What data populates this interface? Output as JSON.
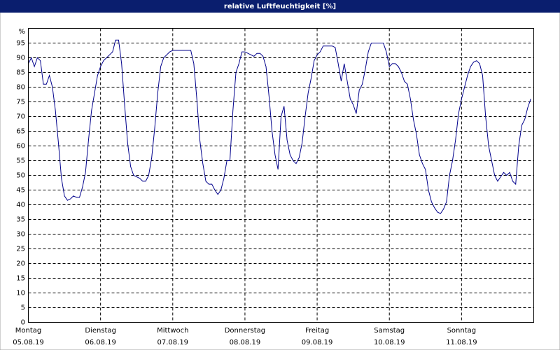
{
  "chart_data": {
    "type": "line",
    "title": "relative Luftfeuchtigkeit [%]",
    "y_label": "%",
    "x": [
      0,
      1,
      2,
      3,
      4,
      5,
      6,
      7,
      8,
      9,
      10,
      11,
      12,
      13,
      14,
      15,
      16,
      17,
      18,
      19,
      20,
      21,
      22,
      23,
      24,
      25,
      26,
      27,
      28,
      29,
      30,
      31,
      32,
      33,
      34,
      35,
      36,
      37,
      38,
      39,
      40,
      41,
      42,
      43,
      44,
      45,
      46,
      47,
      48,
      49,
      50,
      51,
      52,
      53,
      54,
      55,
      56,
      57,
      58,
      59,
      60,
      61,
      62,
      63,
      64,
      65,
      66,
      67,
      68,
      69,
      70,
      71,
      72,
      73,
      74,
      75,
      76,
      77,
      78,
      79,
      80,
      81,
      82,
      83,
      84,
      85,
      86,
      87,
      88,
      89,
      90,
      91,
      92,
      93,
      94,
      95,
      96,
      97,
      98,
      99,
      100,
      101,
      102,
      103,
      104,
      105,
      106,
      107,
      108,
      109,
      110,
      111,
      112,
      113,
      114,
      115,
      116,
      117,
      118,
      119,
      120,
      121,
      122,
      123,
      124,
      125,
      126,
      127,
      128,
      129,
      130,
      131,
      132,
      133,
      134,
      135,
      136,
      137,
      138,
      139,
      140,
      141,
      142,
      143,
      144,
      145,
      146,
      147,
      148,
      149,
      150,
      151,
      152,
      153,
      154,
      155,
      156,
      157,
      158,
      159,
      160,
      161,
      162,
      163,
      164,
      165,
      166,
      167
    ],
    "series": [
      {
        "name": "relative Luftfeuchtigkeit",
        "color": "#00008b",
        "values": [
          88,
          90,
          87,
          90,
          89,
          81,
          81,
          84,
          80,
          72,
          61,
          49,
          43,
          41.5,
          42,
          43,
          42.5,
          42.5,
          46,
          51,
          62,
          72,
          78,
          84,
          87,
          89,
          90,
          91,
          92,
          96,
          96,
          88,
          74,
          61,
          53,
          50,
          49.5,
          49,
          48,
          48,
          50,
          56,
          66,
          78,
          87,
          90,
          91,
          92,
          92.5,
          92.5,
          92.5,
          92.5,
          92.5,
          92.5,
          92.5,
          88,
          76,
          62,
          54,
          48,
          47,
          47,
          45,
          43.5,
          45,
          49,
          55,
          55,
          72,
          85,
          88,
          92,
          92,
          91.5,
          91,
          90.5,
          91.5,
          91.5,
          90.5,
          87,
          77,
          65,
          57,
          52,
          70,
          73.5,
          62,
          57,
          55,
          54,
          56,
          61,
          70,
          78,
          83,
          89,
          91,
          92,
          94,
          94,
          94,
          94,
          93.5,
          88,
          82,
          88,
          82,
          76,
          74,
          71,
          79,
          81,
          86,
          92,
          95,
          95,
          95,
          95,
          95,
          92,
          87,
          88,
          88,
          87,
          85,
          82,
          81,
          76,
          69,
          64,
          57,
          54,
          52,
          45,
          41,
          39,
          37.5,
          37,
          38.5,
          41,
          50,
          55,
          62,
          71,
          76,
          80,
          84,
          87,
          88.5,
          89,
          88,
          84,
          70,
          60,
          55,
          50,
          48,
          49.5,
          51,
          50,
          51,
          48,
          47,
          60,
          67,
          69,
          73,
          76
        ]
      }
    ],
    "xlim": [
      0,
      168
    ],
    "xticks": [
      {
        "value": 0,
        "label": [
          "Montag",
          "05.08.19"
        ]
      },
      {
        "value": 24,
        "label": [
          "Dienstag",
          "06.08.19"
        ]
      },
      {
        "value": 48,
        "label": [
          "Mittwoch",
          "07.08.19"
        ]
      },
      {
        "value": 72,
        "label": [
          "Donnerstag",
          "08.08.19"
        ]
      },
      {
        "value": 96,
        "label": [
          "Freitag",
          "09.08.19"
        ]
      },
      {
        "value": 120,
        "label": [
          "Samstag",
          "10.08.19"
        ]
      },
      {
        "value": 144,
        "label": [
          "Sonntag",
          "11.08.19"
        ]
      }
    ],
    "ylim": [
      0,
      100
    ],
    "yticks": [
      0,
      5,
      10,
      15,
      20,
      25,
      30,
      35,
      40,
      45,
      50,
      55,
      60,
      65,
      70,
      75,
      80,
      85,
      90,
      95
    ],
    "grid": true
  }
}
